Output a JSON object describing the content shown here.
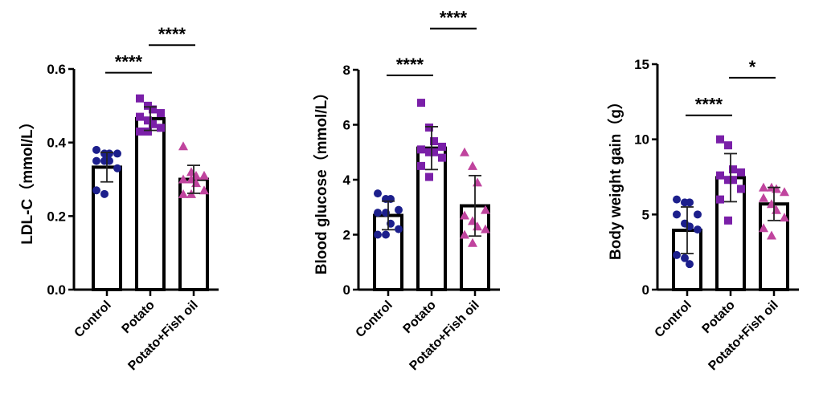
{
  "colors": {
    "Control": "#1c1f8c",
    "Potato": "#7a1fa8",
    "Potato+Fish oil": "#c0449e"
  },
  "chart_data": [
    {
      "type": "bar",
      "title": "",
      "ylabel": "LDL-C（mmol/L）",
      "categories": [
        "Control",
        "Potato",
        "Potato+Fish oil"
      ],
      "ylim": [
        0,
        0.6
      ],
      "yticks": [
        0.0,
        0.2,
        0.4,
        0.6
      ],
      "ytick_labels": [
        "0.0",
        "0.2",
        "0.4",
        "0.6"
      ],
      "means": [
        0.333,
        0.465,
        0.3
      ],
      "sd": [
        0.04,
        0.032,
        0.038
      ],
      "points": [
        [
          0.38,
          0.37,
          0.37,
          0.37,
          0.35,
          0.35,
          0.35,
          0.33,
          0.27,
          0.26
        ],
        [
          0.52,
          0.5,
          0.49,
          0.48,
          0.47,
          0.46,
          0.45,
          0.44,
          0.43,
          0.43
        ],
        [
          0.39,
          0.32,
          0.31,
          0.31,
          0.3,
          0.3,
          0.29,
          0.27,
          0.26,
          0.26
        ]
      ],
      "markers": [
        "circle",
        "square",
        "triangle"
      ],
      "significance": [
        {
          "from": 0,
          "to": 1,
          "label": "****",
          "y": 0.59
        },
        {
          "from": 1,
          "to": 2,
          "label": "****",
          "y": 0.665
        }
      ]
    },
    {
      "type": "bar",
      "title": "",
      "ylabel": "Blood glucose（mmol/L）",
      "categories": [
        "Control",
        "Potato",
        "Potato+Fish oil"
      ],
      "ylim": [
        0,
        8
      ],
      "yticks": [
        0,
        2,
        4,
        6,
        8
      ],
      "ytick_labels": [
        "0",
        "2",
        "4",
        "6",
        "8"
      ],
      "means": [
        2.7,
        5.15,
        3.05
      ],
      "sd": [
        0.52,
        0.78,
        1.1
      ],
      "points": [
        [
          3.5,
          3.3,
          3.3,
          2.9,
          2.8,
          2.8,
          2.4,
          2.2,
          2.0,
          2.0
        ],
        [
          6.8,
          5.9,
          5.4,
          5.2,
          5.1,
          5.0,
          5.0,
          4.8,
          4.5,
          4.1
        ],
        [
          5.0,
          4.5,
          3.9,
          2.9,
          2.7,
          2.5,
          2.3,
          2.2,
          2.0,
          1.7
        ]
      ],
      "markers": [
        "circle",
        "square",
        "triangle"
      ],
      "significance": [
        {
          "from": 0,
          "to": 1,
          "label": "****",
          "y": 7.8
        },
        {
          "from": 1,
          "to": 2,
          "label": "****",
          "y": 9.5
        }
      ]
    },
    {
      "type": "bar",
      "title": "",
      "ylabel": "Body weight gain（g）",
      "categories": [
        "Control",
        "Potato",
        "Potato+Fish oil"
      ],
      "ylim": [
        0,
        15
      ],
      "yticks": [
        0,
        5,
        10,
        15
      ],
      "ytick_labels": [
        "0",
        "5",
        "10",
        "15"
      ],
      "means": [
        3.95,
        7.45,
        5.7
      ],
      "sd": [
        1.55,
        1.6,
        1.1
      ],
      "points": [
        [
          6.0,
          5.8,
          5.8,
          5.0,
          5.0,
          4.4,
          4.2,
          4.0,
          2.3,
          2.1,
          1.7
        ],
        [
          10.0,
          9.6,
          8.0,
          7.8,
          7.6,
          7.3,
          7.3,
          6.7,
          6.0,
          4.6
        ],
        [
          6.8,
          6.8,
          6.7,
          6.5,
          6.1,
          5.7,
          5.3,
          4.8,
          4.1,
          3.6
        ]
      ],
      "markers": [
        "circle",
        "square",
        "triangle"
      ],
      "significance": [
        {
          "from": 0,
          "to": 1,
          "label": "****",
          "y": 11.6
        },
        {
          "from": 1,
          "to": 2,
          "label": "*",
          "y": 14.1
        }
      ]
    }
  ]
}
